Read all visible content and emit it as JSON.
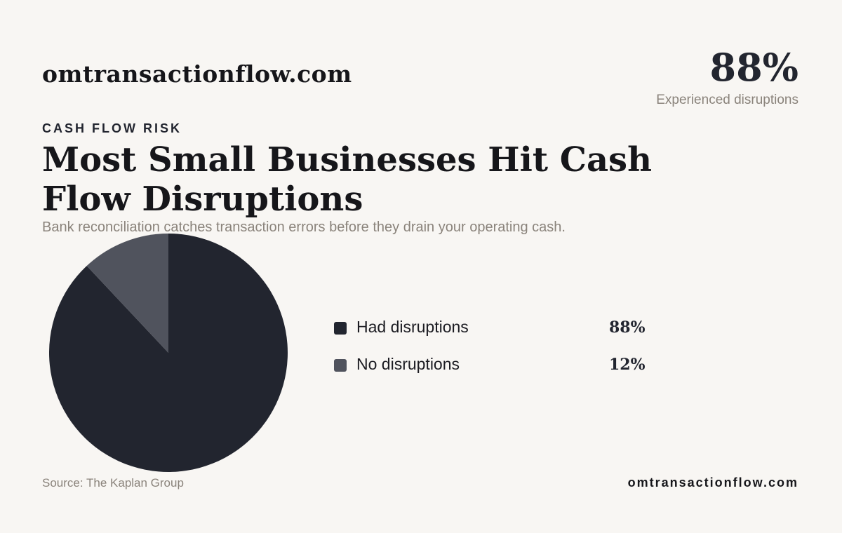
{
  "header": {
    "brand": "omtransactionflow.com",
    "kpi_value": "88%",
    "kpi_label": "Experienced disruptions"
  },
  "eyebrow": "CASH FLOW RISK",
  "title": "Most Small Businesses Hit Cash Flow Disruptions",
  "subtitle": "Bank reconciliation catches transaction errors before they drain your operating cash.",
  "chart_data": {
    "type": "pie",
    "categories": [
      "Had disruptions",
      "No disruptions"
    ],
    "values": [
      88,
      12
    ],
    "value_labels": [
      "88%",
      "12%"
    ],
    "colors": [
      "#22252f",
      "#50535d"
    ],
    "legend_position": "right"
  },
  "footer": {
    "source": "Source: The Kaplan Group",
    "brand": "omtransactionflow.com"
  }
}
